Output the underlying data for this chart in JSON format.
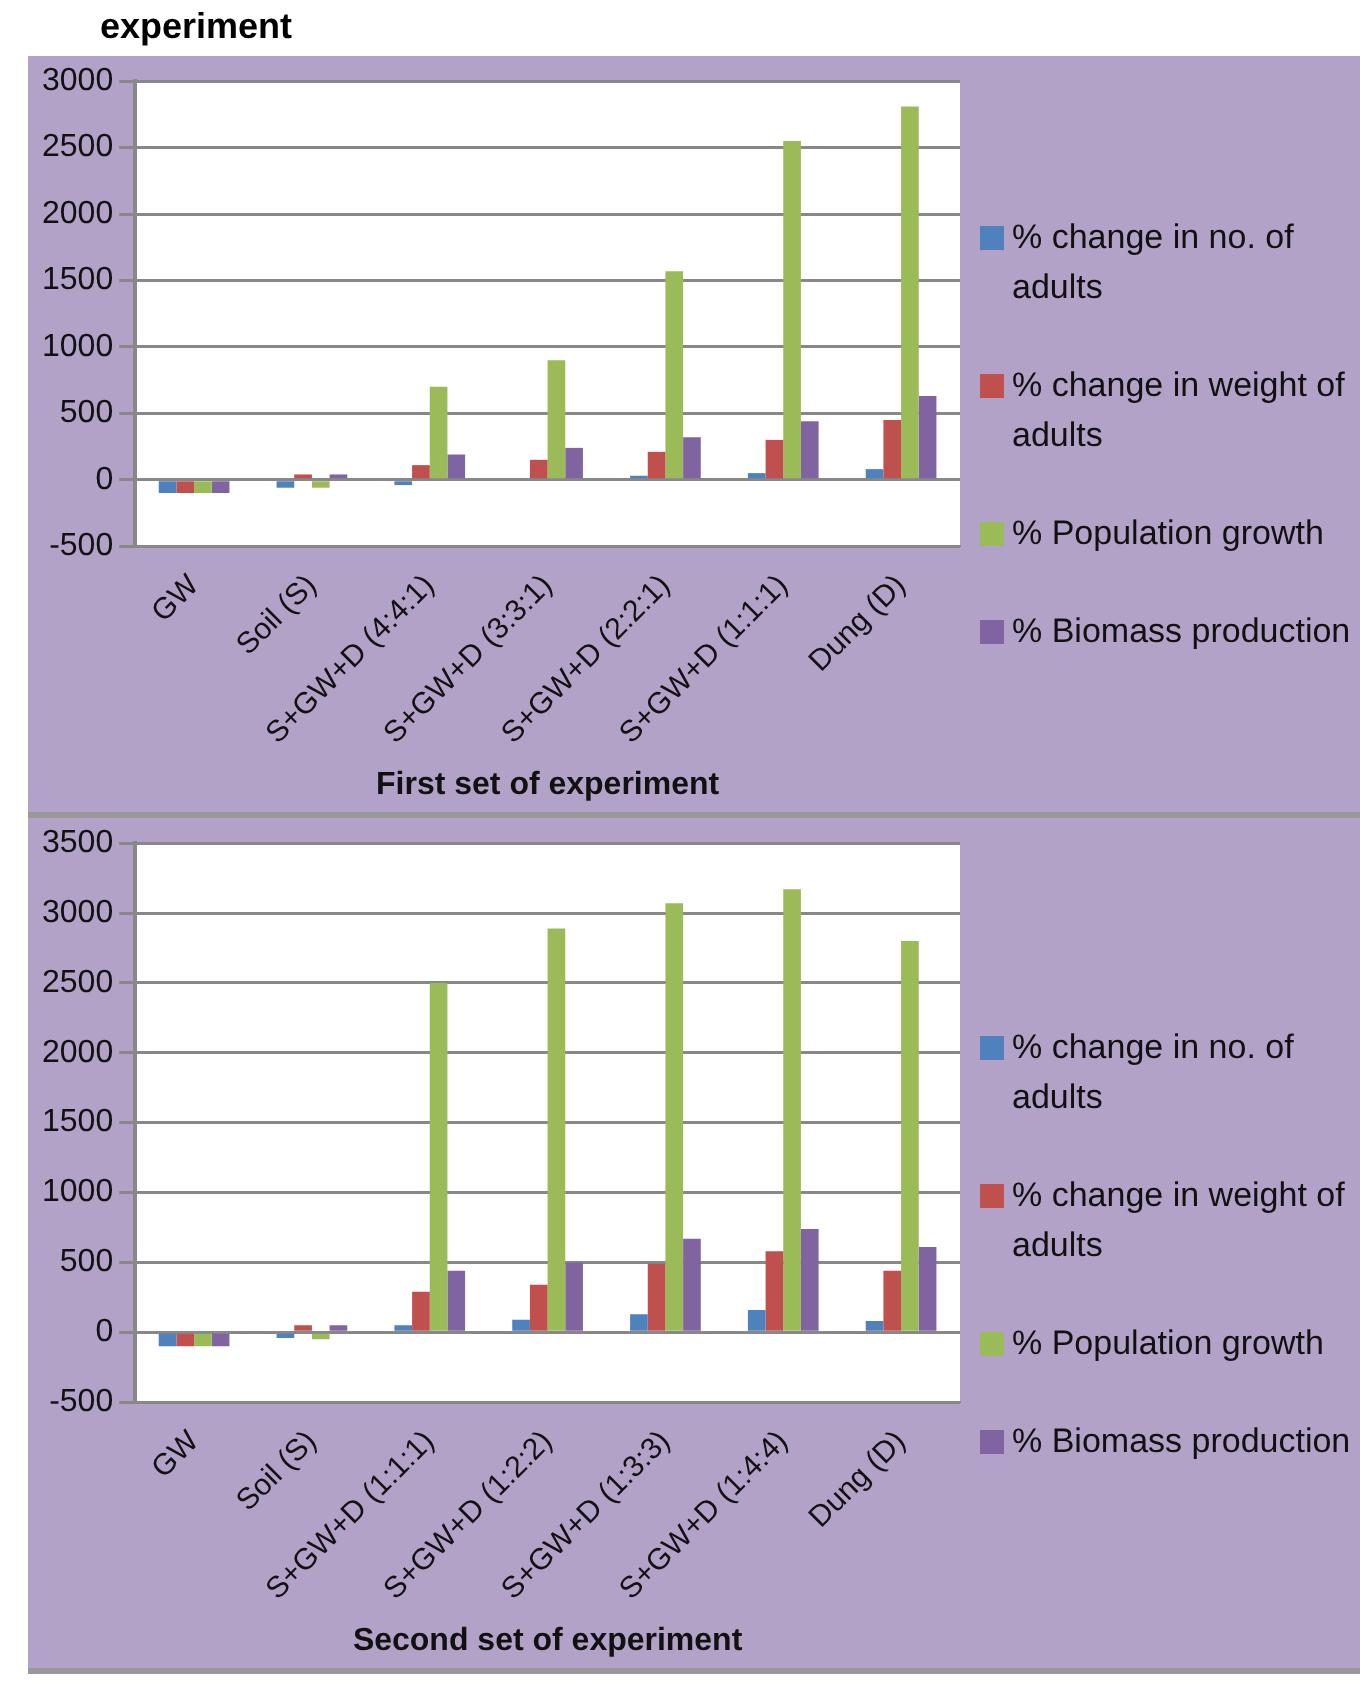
{
  "chart_data": [
    {
      "type": "bar",
      "title": "experiment",
      "xlabel": "First set of experiment",
      "categories": [
        "GW",
        "Soil (S)",
        "S+GW+D (4:4:1)",
        "S+GW+D (3:3:1)",
        "S+GW+D (2:2:1)",
        "S+GW+D (1:1:1)",
        "Dung (D)"
      ],
      "series": [
        {
          "name": "% change in no. of adults",
          "color": "#4f81bd",
          "values": [
            -100,
            -60,
            -40,
            0,
            30,
            50,
            80
          ]
        },
        {
          "name": "% change in weight of adults",
          "color": "#c0504d",
          "values": [
            -100,
            40,
            110,
            150,
            210,
            300,
            450
          ]
        },
        {
          "name": "% Population growth",
          "color": "#9bbb59",
          "values": [
            -100,
            -60,
            700,
            900,
            1570,
            2550,
            2810
          ]
        },
        {
          "name": "% Biomass production",
          "color": "#8064a2",
          "values": [
            -100,
            40,
            190,
            240,
            320,
            440,
            630
          ]
        }
      ],
      "ylim": [
        -500,
        3000
      ],
      "yticks": [
        -500,
        0,
        500,
        1000,
        1500,
        2000,
        2500,
        3000
      ],
      "grid": "y",
      "legend": "right"
    },
    {
      "type": "bar",
      "xlabel": "Second set of experiment",
      "categories": [
        "GW",
        "Soil (S)",
        "S+GW+D (1:1:1)",
        "S+GW+D (1:2:2)",
        "S+GW+D (1:3:3)",
        "S+GW+D (1:4:4)",
        "Dung (D)"
      ],
      "series": [
        {
          "name": "% change in no. of adults",
          "color": "#4f81bd",
          "values": [
            -100,
            -40,
            50,
            90,
            130,
            160,
            80
          ]
        },
        {
          "name": "% change in weight  of adults",
          "color": "#c0504d",
          "values": [
            -100,
            50,
            290,
            340,
            490,
            580,
            440
          ]
        },
        {
          "name": "% Population growth",
          "color": "#9bbb59",
          "values": [
            -100,
            -50,
            2500,
            2890,
            3070,
            3170,
            2800
          ]
        },
        {
          "name": "% Biomass production",
          "color": "#8064a2",
          "values": [
            -100,
            50,
            440,
            500,
            670,
            740,
            610
          ]
        }
      ],
      "ylim": [
        -500,
        3500
      ],
      "yticks": [
        -500,
        0,
        500,
        1000,
        1500,
        2000,
        2500,
        3000,
        3500
      ],
      "grid": "y",
      "legend": "right"
    }
  ]
}
